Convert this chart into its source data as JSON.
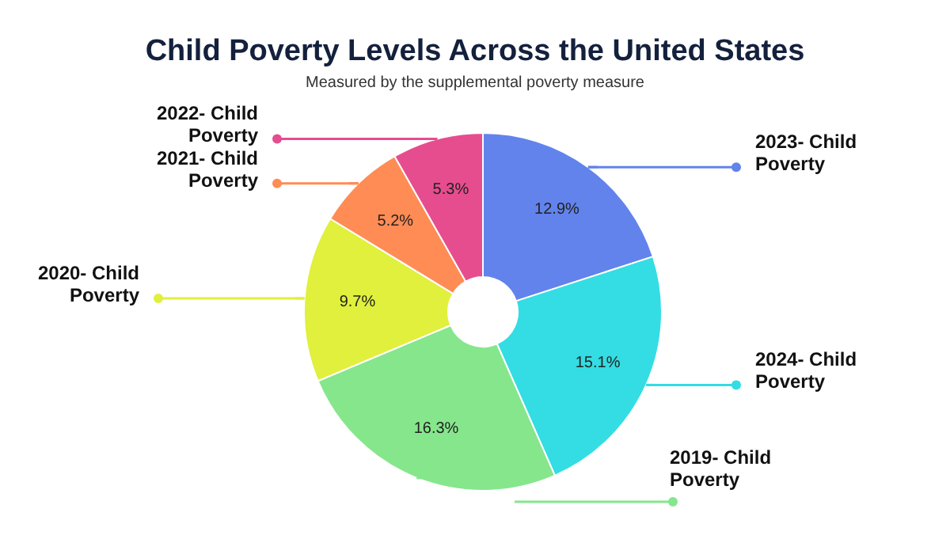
{
  "chart_data": {
    "type": "donut",
    "title": "Child Poverty Levels Across the United States",
    "subtitle": "Measured by the supplemental poverty measure",
    "categories": [
      "2023- Child Poverty",
      "2024- Child Poverty",
      "2019- Child Poverty",
      "2020- Child Poverty",
      "2021- Child Poverty",
      "2022- Child Poverty"
    ],
    "values": [
      12.9,
      15.1,
      16.3,
      9.7,
      5.2,
      5.3
    ],
    "value_labels": [
      "12.9%",
      "15.1%",
      "16.3%",
      "9.7%",
      "5.2%",
      "5.3%"
    ],
    "colors": [
      "#6283ec",
      "#33dde3",
      "#86e68c",
      "#e0f03c",
      "#ff8c55",
      "#e64d8e"
    ],
    "legend": false
  }
}
